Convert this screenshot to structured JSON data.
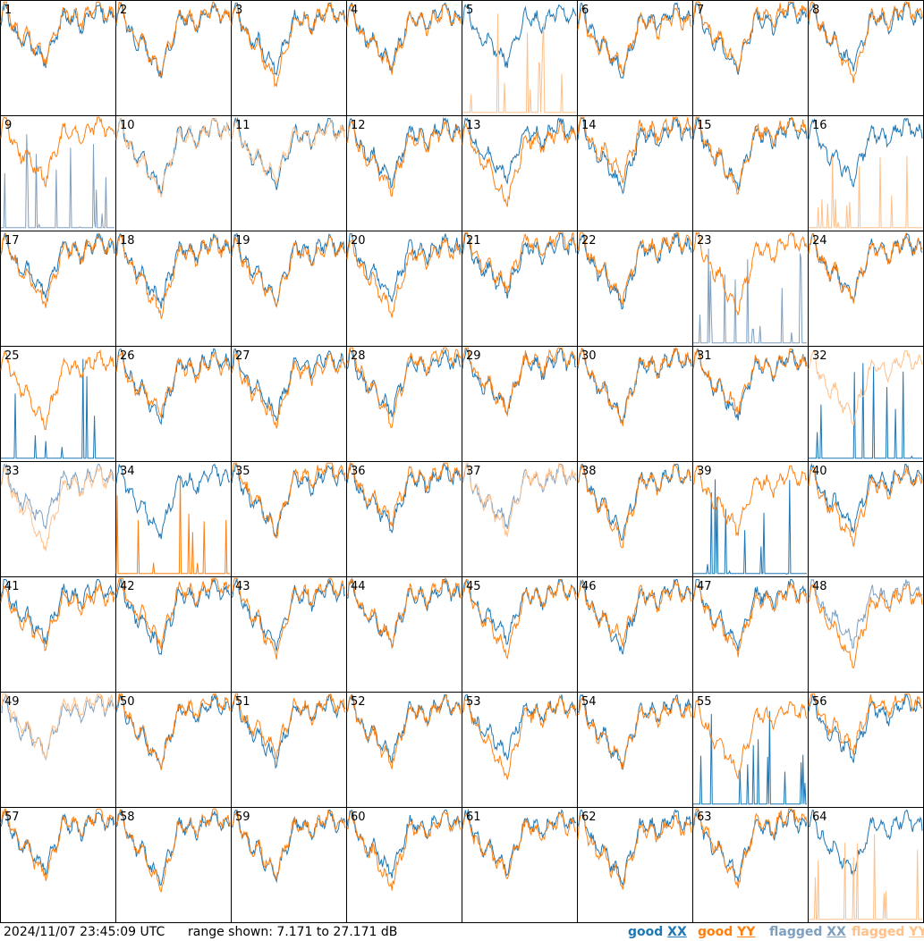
{
  "chart_data": {
    "type": "line",
    "layout": "small-multiples 8x8",
    "panel_labels": [
      "1",
      "2",
      "3",
      "4",
      "5",
      "6",
      "7",
      "8",
      "9",
      "10",
      "11",
      "12",
      "13",
      "14",
      "15",
      "16",
      "17",
      "18",
      "19",
      "20",
      "21",
      "22",
      "23",
      "24",
      "25",
      "26",
      "27",
      "28",
      "29",
      "30",
      "31",
      "32",
      "33",
      "34",
      "35",
      "36",
      "37",
      "38",
      "39",
      "40",
      "41",
      "42",
      "43",
      "44",
      "45",
      "46",
      "47",
      "48",
      "49",
      "50",
      "51",
      "52",
      "53",
      "54",
      "55",
      "56",
      "57",
      "58",
      "59",
      "60",
      "61",
      "62",
      "63",
      "64"
    ],
    "y_range_db": [
      7.171,
      27.171
    ],
    "series_colors": {
      "good_xx": "#1f77b4",
      "good_yy": "#ff7f0e",
      "flagged_xx": "#7f9fbf",
      "flagged_yy": "#ffc08a"
    },
    "panel_states": {
      "9": {
        "xx": "flagged-spikes",
        "yy": "good"
      },
      "10": {
        "xx": "good",
        "yy": "flagged"
      },
      "11": {
        "xx": "good",
        "yy": "flagged"
      },
      "5": {
        "xx": "good",
        "yy": "flagged-spikes"
      },
      "16": {
        "xx": "good",
        "yy": "flagged-spikes"
      },
      "23": {
        "xx": "flagged-spikes",
        "yy": "good"
      },
      "25": {
        "xx": "good-spike",
        "yy": "good"
      },
      "27": {
        "xx": "good-anomalous",
        "yy": "good"
      },
      "32": {
        "xx": "good-spike",
        "yy": "flagged"
      },
      "33": {
        "xx": "flagged",
        "yy": "flagged"
      },
      "34": {
        "xx": "good",
        "yy": "good-spikes"
      },
      "37": {
        "xx": "flagged",
        "yy": "flagged"
      },
      "39": {
        "xx": "good-spikes",
        "yy": "good"
      },
      "48": {
        "xx": "flagged",
        "yy": "good"
      },
      "49": {
        "xx": "flagged",
        "yy": "flagged"
      },
      "55": {
        "xx": "good-spikes",
        "yy": "good"
      },
      "64": {
        "xx": "good",
        "yy": "flagged-spikes"
      }
    }
  },
  "footer": {
    "timestamp": "2024/11/07 23:45:09 UTC",
    "range_text": "range shown: 7.171 to 27.171 dB",
    "legend": [
      {
        "prefix": "good ",
        "swatch": "XX",
        "color": "#1f77b4"
      },
      {
        "prefix": "good ",
        "swatch": "YY",
        "color": "#ff7f0e"
      },
      {
        "prefix": "flagged ",
        "swatch": "XX",
        "color": "#7f9fbf"
      },
      {
        "prefix": "flagged ",
        "swatch": "YY",
        "color": "#ffc08a"
      }
    ]
  }
}
